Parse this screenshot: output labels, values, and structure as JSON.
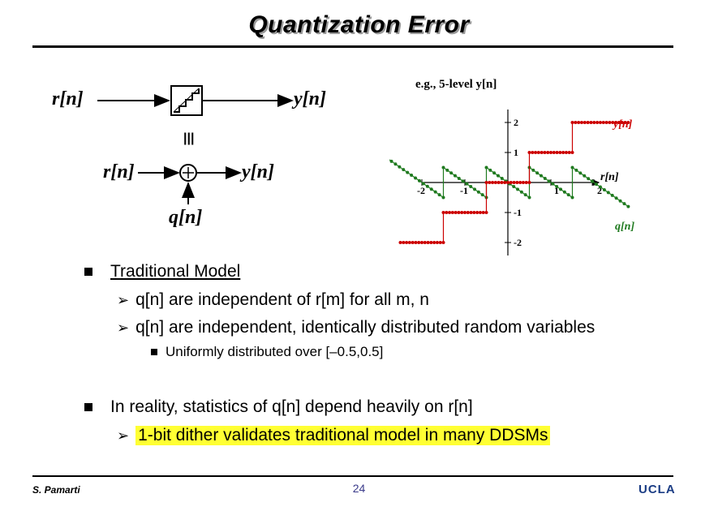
{
  "title": "Quantization Error",
  "block_diagram": {
    "input_label": "r[n]",
    "output_label": "y[n]",
    "equiv_symbol": "|||",
    "input2_label": "r[n]",
    "output2_label": "y[n]",
    "noise_label": "q[n]"
  },
  "chart_data": {
    "type": "scatter",
    "title": "e.g., 5-level y[n]",
    "xlabel": "r[n]",
    "x_ticks": [
      "-2",
      "-1",
      "1",
      "2"
    ],
    "y_ticks": [
      "2",
      "1",
      "-1",
      "-2"
    ],
    "xlim": [
      -3,
      3
    ],
    "ylim": [
      -2.5,
      2.5
    ],
    "series": [
      {
        "name": "y[n]",
        "color": "#cc0000",
        "segments": [
          {
            "x": [
              -2.5,
              -1.5
            ],
            "y": -2
          },
          {
            "x": [
              -1.5,
              -0.5
            ],
            "y": -1
          },
          {
            "x": [
              -0.5,
              0.5
            ],
            "y": 0
          },
          {
            "x": [
              0.5,
              1.5
            ],
            "y": 1
          },
          {
            "x": [
              1.5,
              2.8
            ],
            "y": 2
          }
        ]
      },
      {
        "name": "q[n]",
        "color": "#1f7a1f",
        "segments": [
          {
            "x": [
              -2.8,
              -1.5
            ],
            "y0": 0.8,
            "y1": -0.5
          },
          {
            "x": [
              -1.5,
              -0.5
            ],
            "y0": 0.5,
            "y1": -0.5
          },
          {
            "x": [
              -0.5,
              0.5
            ],
            "y0": 0.5,
            "y1": -0.5
          },
          {
            "x": [
              0.5,
              1.5
            ],
            "y0": 0.5,
            "y1": -0.5
          },
          {
            "x": [
              1.5,
              2.8
            ],
            "y0": 0.5,
            "y1": -0.8
          }
        ]
      }
    ]
  },
  "bullets": {
    "b1": "Traditional Model",
    "b1_1": "q[n] are independent of r[m] for all m, n",
    "b1_2": "q[n] are independent, identically distributed random variables",
    "b1_2_1": "Uniformly distributed over [–0.5,0.5]",
    "b2": "In reality, statistics of q[n] depend heavily on r[n]",
    "b2_1": "1-bit dither validates traditional model in many DDSMs"
  },
  "footer": {
    "author": "S. Pamarti",
    "page": "24",
    "org": "UCLA"
  }
}
